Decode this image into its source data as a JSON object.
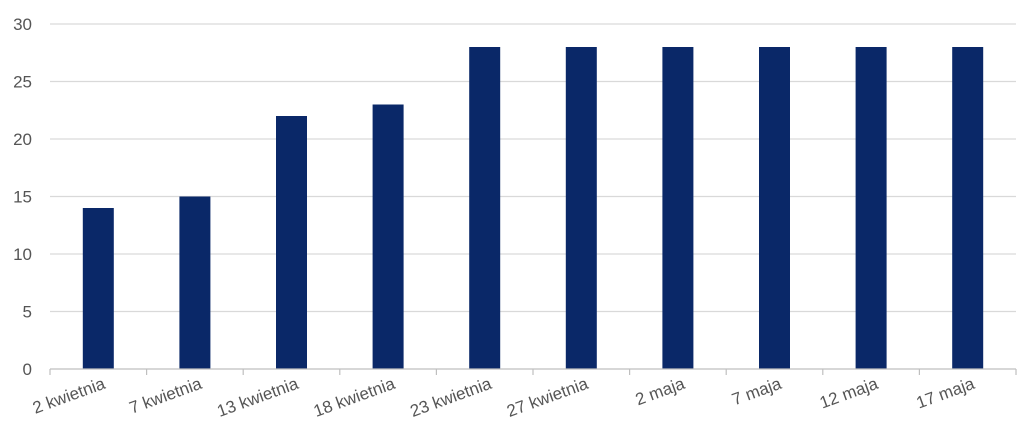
{
  "chart_data": {
    "type": "bar",
    "title": "",
    "xlabel": "",
    "ylabel": "",
    "categories": [
      "2 kwietnia",
      "7 kwietnia",
      "13 kwietnia",
      "18 kwietnia",
      "23 kwietnia",
      "27 kwietnia",
      "2 maja",
      "7 maja",
      "12 maja",
      "17 maja"
    ],
    "values": [
      14,
      15,
      22,
      23,
      28,
      28,
      28,
      28,
      28,
      28
    ],
    "ylim": [
      0,
      30
    ],
    "yticks": [
      0,
      5,
      10,
      15,
      20,
      25,
      30
    ],
    "grid": "horizontal",
    "legend": "none",
    "bar_color": "#0a2868",
    "grid_color": "#d9d9d9",
    "axis_color": "#bfbfbf",
    "label_color": "#555555"
  }
}
